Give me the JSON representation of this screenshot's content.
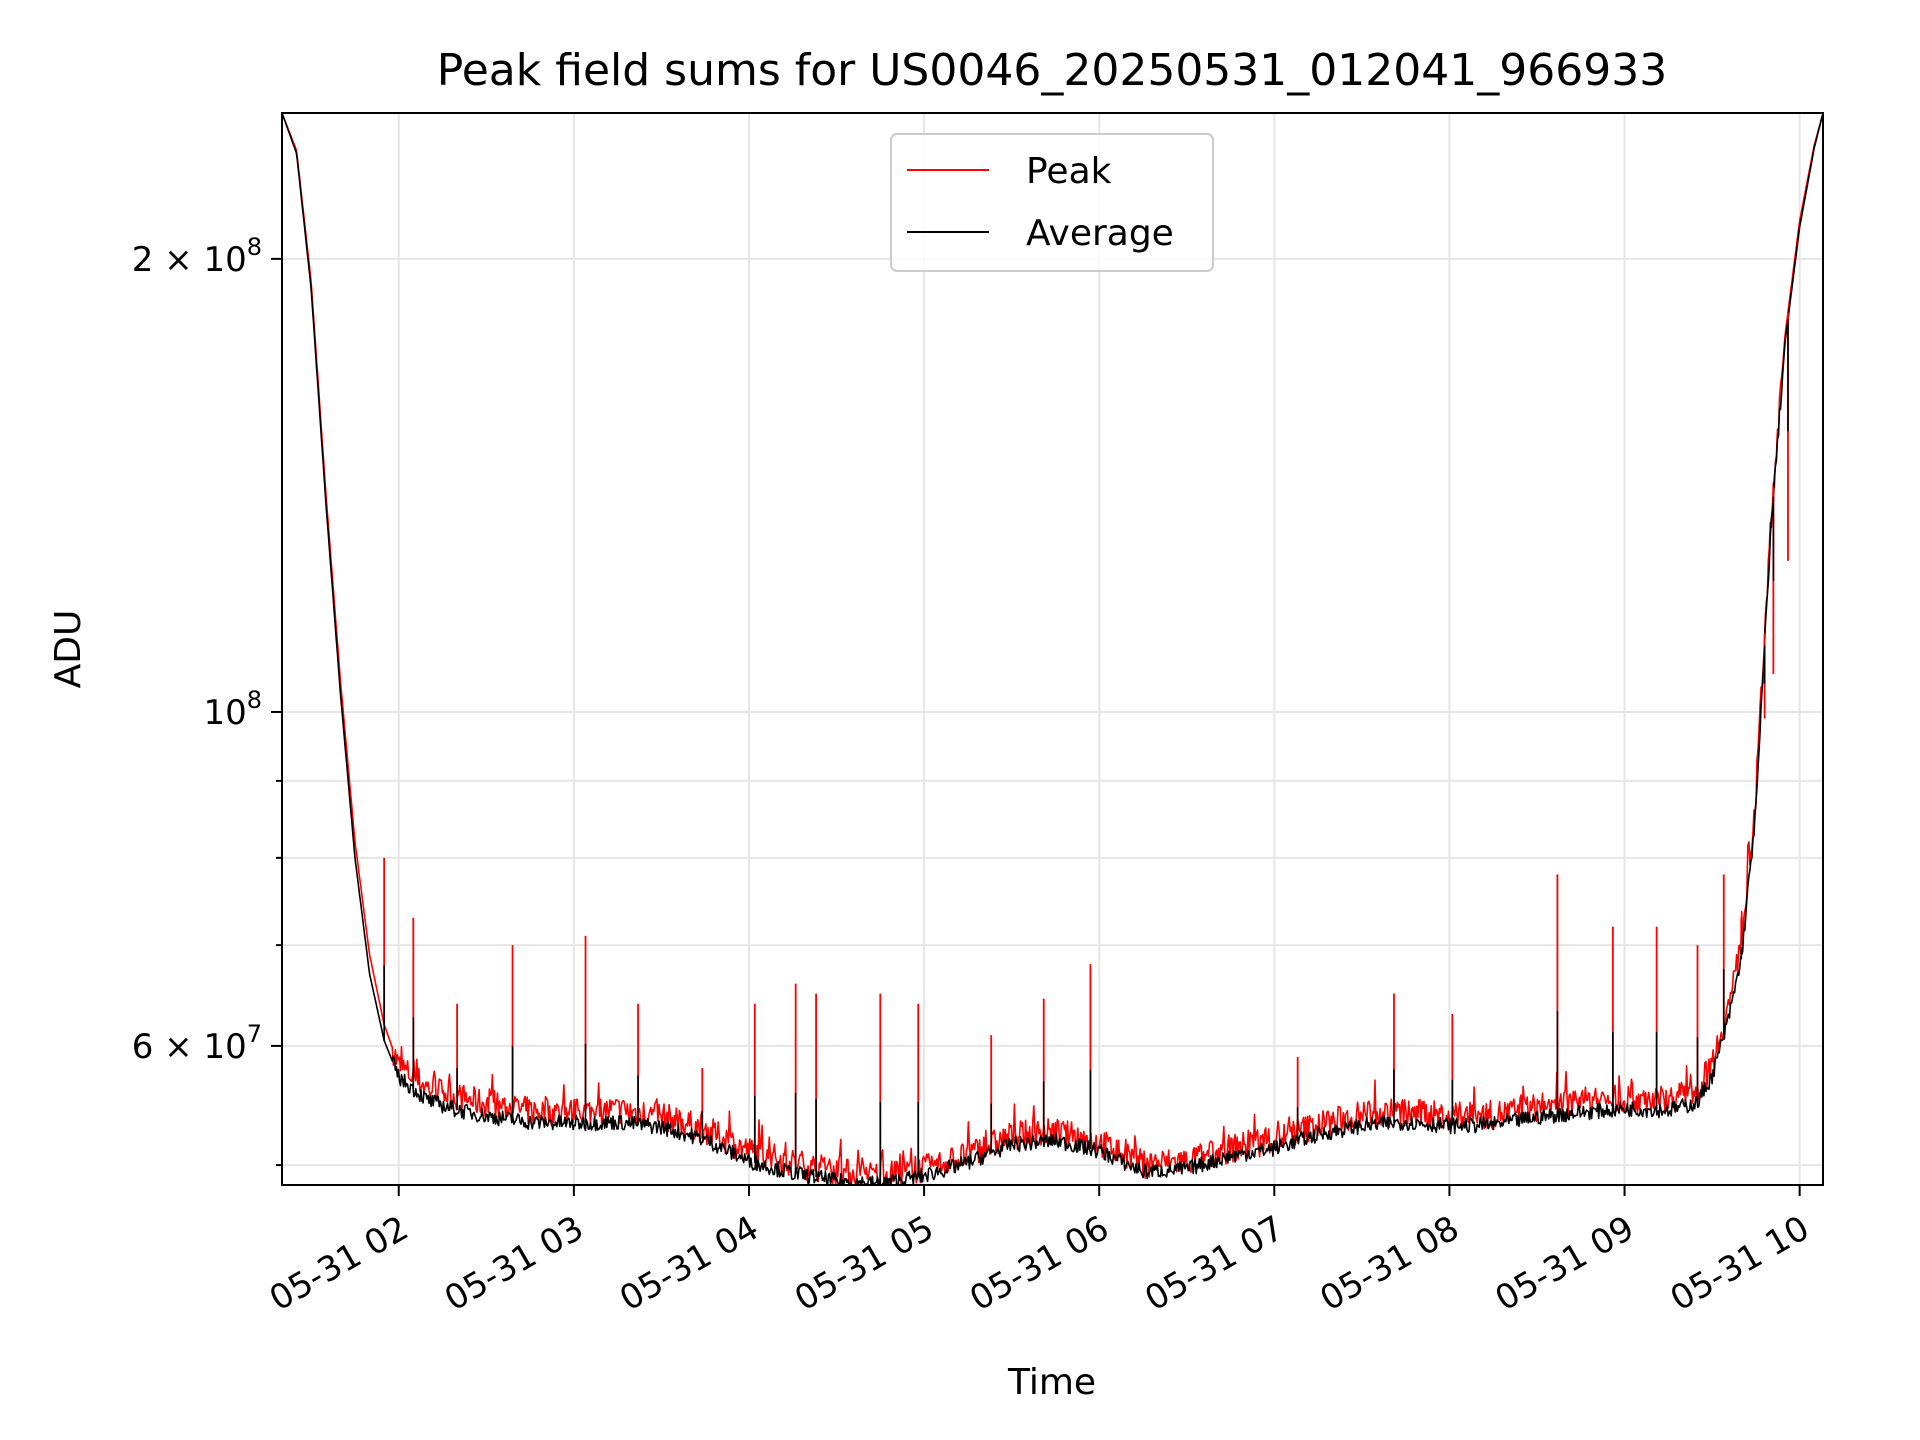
{
  "chart_data": {
    "type": "line",
    "title": "Peak field sums for US0046_20250531_012041_966933",
    "xlabel": "Time",
    "ylabel": "ADU",
    "x_range": [
      "2025-05-31 01:20",
      "2025-05-31 10:08"
    ],
    "ylim": [
      48500000,
      250000000
    ],
    "yscale": "log",
    "grid": true,
    "legend_position": "top-center",
    "x_ticks": [
      "05-31 02",
      "05-31 03",
      "05-31 04",
      "05-31 05",
      "05-31 06",
      "05-31 07",
      "05-31 08",
      "05-31 09",
      "05-31 10"
    ],
    "y_tick_labels": [
      {
        "value": 200000000,
        "mantissa": "2",
        "exponent": "8"
      },
      {
        "value": 100000000,
        "mantissa": "",
        "exponent": "8"
      },
      {
        "value": 60000000,
        "mantissa": "6",
        "exponent": "7"
      }
    ],
    "y_minor_ticks": [
      50000000,
      70000000,
      80000000,
      90000000
    ],
    "series": [
      {
        "name": "Peak",
        "color": "#ff0000",
        "x": [
          "01:20",
          "01:25",
          "01:30",
          "01:35",
          "01:40",
          "01:45",
          "01:50",
          "01:55",
          "02:00",
          "02:10",
          "02:20",
          "02:30",
          "02:45",
          "03:00",
          "03:15",
          "03:30",
          "03:45",
          "04:00",
          "04:15",
          "04:30",
          "04:45",
          "05:00",
          "05:15",
          "05:30",
          "05:45",
          "06:00",
          "06:15",
          "06:30",
          "06:45",
          "07:00",
          "07:15",
          "07:30",
          "07:45",
          "08:00",
          "08:15",
          "08:30",
          "08:45",
          "09:00",
          "09:15",
          "09:25",
          "09:30",
          "09:35",
          "09:40",
          "09:45",
          "09:50",
          "09:55",
          "10:00",
          "10:05",
          "10:08"
        ],
        "y": [
          250000000,
          236000000,
          193000000,
          140000000,
          105000000,
          82000000,
          69000000,
          62000000,
          58200000,
          56300000,
          55500000,
          54900000,
          54300000,
          54200000,
          54400000,
          53900000,
          52800000,
          51100000,
          50200000,
          49500000,
          49200000,
          49700000,
          50800000,
          52300000,
          52600000,
          51800000,
          50100000,
          50300000,
          51300000,
          52000000,
          53200000,
          54000000,
          54200000,
          53900000,
          54000000,
          54600000,
          55100000,
          55400000,
          55300000,
          56000000,
          58500000,
          63000000,
          70000000,
          88000000,
          133000000,
          178000000,
          212000000,
          238000000,
          250000000
        ]
      },
      {
        "name": "Average",
        "color": "#000000",
        "x": [
          "01:20",
          "01:25",
          "01:30",
          "01:35",
          "01:40",
          "01:45",
          "01:50",
          "01:55",
          "02:00",
          "02:10",
          "02:20",
          "02:30",
          "02:45",
          "03:00",
          "03:15",
          "03:30",
          "03:45",
          "04:00",
          "04:15",
          "04:30",
          "04:45",
          "05:00",
          "05:15",
          "05:30",
          "05:45",
          "06:00",
          "06:15",
          "06:30",
          "06:45",
          "07:00",
          "07:15",
          "07:30",
          "07:45",
          "08:00",
          "08:15",
          "08:30",
          "08:45",
          "09:00",
          "09:15",
          "09:25",
          "09:30",
          "09:35",
          "09:40",
          "09:45",
          "09:50",
          "09:55",
          "10:00",
          "10:05",
          "10:08"
        ],
        "y": [
          250000000,
          235000000,
          191000000,
          138000000,
          103000000,
          80000000,
          67000000,
          60500000,
          57200000,
          55200000,
          54400000,
          53900000,
          53400000,
          53300000,
          53400000,
          53000000,
          52000000,
          50300000,
          49400000,
          48800000,
          48600000,
          49200000,
          50200000,
          51600000,
          51900000,
          51100000,
          49500000,
          49700000,
          50700000,
          51300000,
          52400000,
          53100000,
          53400000,
          53100000,
          53200000,
          53800000,
          54200000,
          54500000,
          54400000,
          55000000,
          57300000,
          61800000,
          68500000,
          86000000,
          131000000,
          176000000,
          210000000,
          237000000,
          250000000
        ]
      }
    ],
    "peak_spikes": [
      {
        "x": "01:48",
        "y": 74000000
      },
      {
        "x": "01:55",
        "y": 80000000
      },
      {
        "x": "02:05",
        "y": 73000000
      },
      {
        "x": "02:20",
        "y": 64000000
      },
      {
        "x": "02:39",
        "y": 70000000
      },
      {
        "x": "03:04",
        "y": 71000000
      },
      {
        "x": "03:22",
        "y": 64000000
      },
      {
        "x": "03:44",
        "y": 58000000
      },
      {
        "x": "04:02",
        "y": 64000000
      },
      {
        "x": "04:16",
        "y": 66000000
      },
      {
        "x": "04:23",
        "y": 65000000
      },
      {
        "x": "04:45",
        "y": 65000000
      },
      {
        "x": "04:58",
        "y": 64000000
      },
      {
        "x": "05:23",
        "y": 61000000
      },
      {
        "x": "05:41",
        "y": 64500000
      },
      {
        "x": "05:57",
        "y": 68000000
      },
      {
        "x": "06:28",
        "y": 51000000
      },
      {
        "x": "07:08",
        "y": 59000000
      },
      {
        "x": "07:41",
        "y": 65000000
      },
      {
        "x": "08:01",
        "y": 63000000
      },
      {
        "x": "08:37",
        "y": 78000000
      },
      {
        "x": "08:56",
        "y": 72000000
      },
      {
        "x": "09:11",
        "y": 72000000
      },
      {
        "x": "09:25",
        "y": 70000000
      },
      {
        "x": "09:34",
        "y": 78000000
      },
      {
        "x": "09:40",
        "y": 73000000
      },
      {
        "x": "09:48",
        "y": 99000000
      },
      {
        "x": "09:51",
        "y": 106000000
      },
      {
        "x": "09:56",
        "y": 126000000
      }
    ]
  }
}
